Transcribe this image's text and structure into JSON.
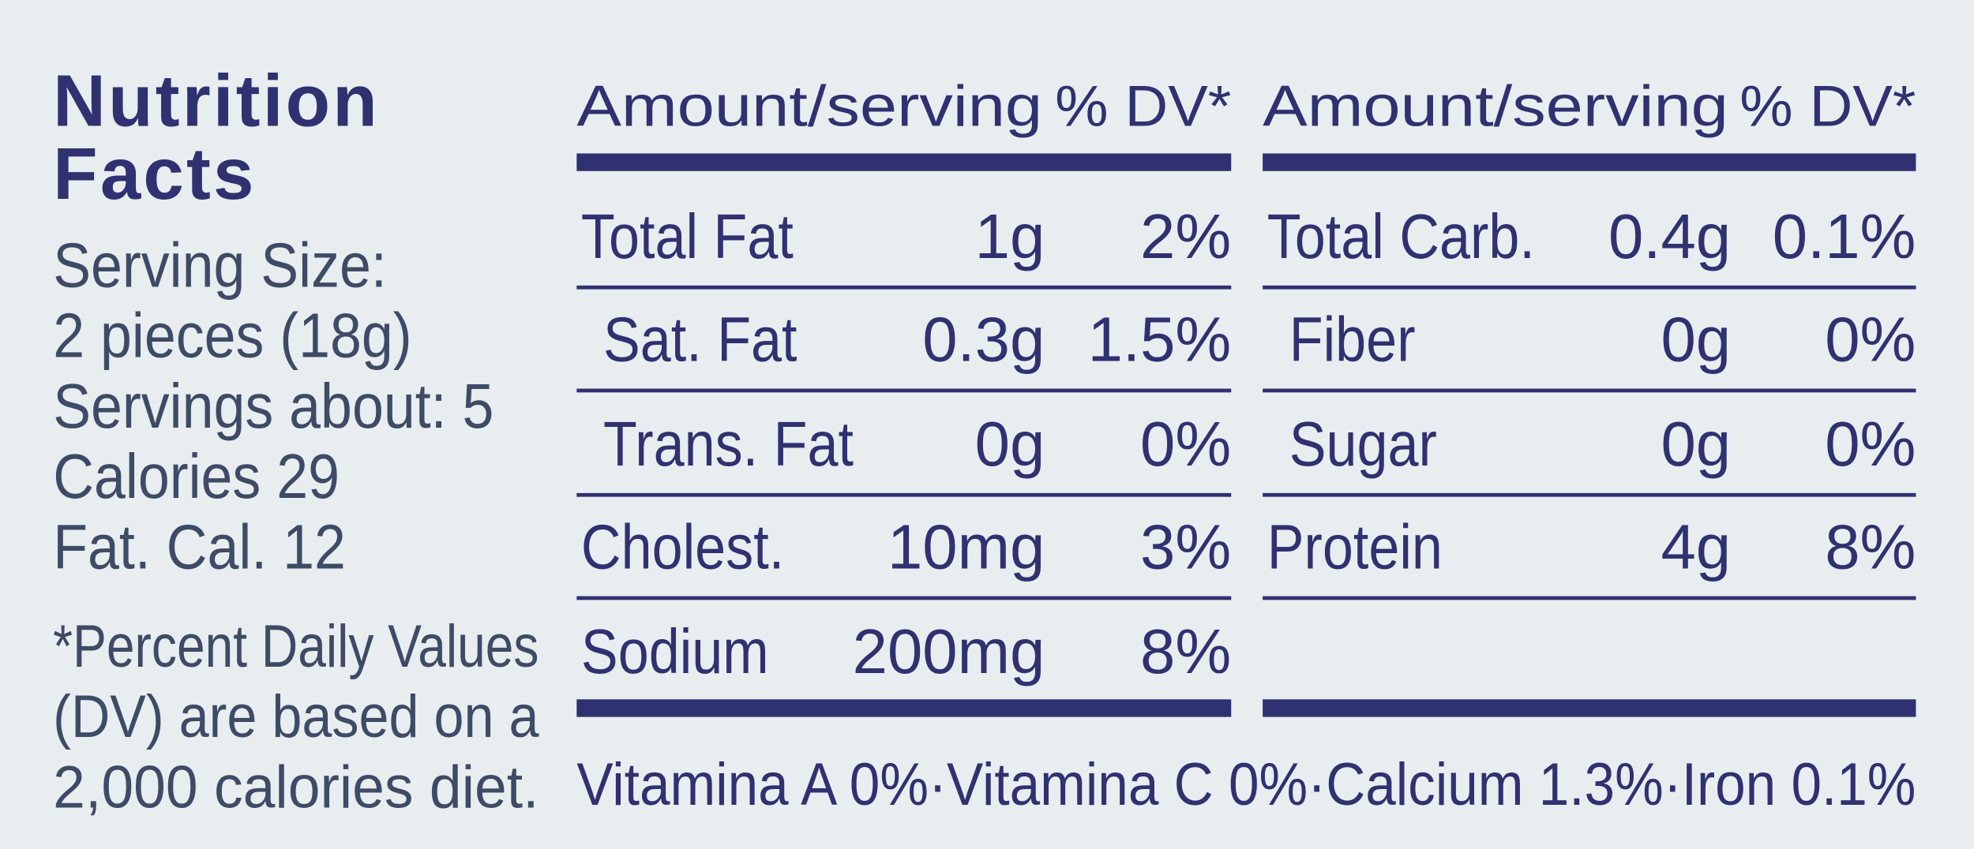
{
  "label": {
    "title": [
      "Nutrition",
      "Facts"
    ],
    "serving_info": [
      "Serving Size:",
      "2 pieces (18g)",
      "Servings about: 5",
      "Calories 29",
      "Fat. Cal. 12"
    ],
    "footnote": [
      "*Percent Daily Values",
      "(DV) are based on a",
      "2,000 calories diet."
    ],
    "left_panel": {
      "header": [
        "Amount/serving",
        "% DV*"
      ],
      "rows": [
        [
          "Total Fat",
          "1g",
          "2%"
        ],
        [
          "Sat. Fat",
          "0.3g",
          "1.5%"
        ],
        [
          "Trans. Fat",
          "0g",
          "0%"
        ],
        [
          "Cholest.",
          "10mg",
          "3%"
        ],
        [
          "Sodium",
          "200mg",
          "8%"
        ]
      ]
    },
    "right_panel": {
      "header": [
        "Amount/serving",
        "% DV*"
      ],
      "rows": [
        [
          "Total Carb.",
          "0.4g",
          "0.1%"
        ],
        [
          "Fiber",
          "0g",
          "0%"
        ],
        [
          "Sugar",
          "0g",
          "0%"
        ],
        [
          "Protein",
          "4g",
          "8%"
        ]
      ]
    },
    "vitamins": "Vitamina A 0%·Vitamina C 0%·Calcium 1.3%·Iron 0.1%"
  }
}
